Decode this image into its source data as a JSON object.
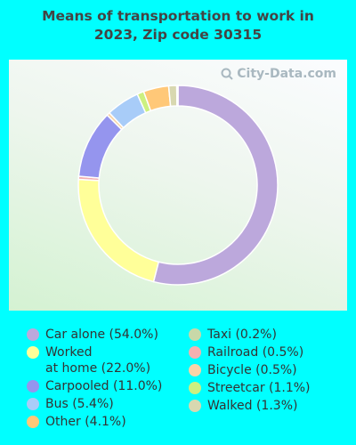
{
  "chart_data": {
    "type": "pie",
    "title_lines": [
      "Means of transportation to work in",
      "2023, Zip code 30315"
    ],
    "watermark": "City-Data.com",
    "slices": [
      {
        "label": "Car alone (54.0%)",
        "value": 54.0,
        "color": "#bca8dc"
      },
      {
        "label": "Worked\nat home (22.0%)",
        "value": 22.0,
        "color": "#ffff99"
      },
      {
        "label": "Railroad (0.5%)",
        "value": 0.5,
        "color": "#f4b0b0"
      },
      {
        "label": "Carpooled (11.0%)",
        "value": 11.0,
        "color": "#9595ee"
      },
      {
        "label": "Bicycle (0.5%)",
        "value": 0.5,
        "color": "#f8d4a8"
      },
      {
        "label": "Bus (5.4%)",
        "value": 5.4,
        "color": "#a8ccf8"
      },
      {
        "label": "Streetcar (1.1%)",
        "value": 1.1,
        "color": "#ccf080"
      },
      {
        "label": "Other (4.1%)",
        "value": 4.1,
        "color": "#ffc878"
      },
      {
        "label": "Walked (1.3%)",
        "value": 1.3,
        "color": "#d8d8b0"
      },
      {
        "label": "Taxi (0.2%)",
        "value": 0.2,
        "color": "#c8d8a8"
      }
    ],
    "legend_columns": [
      [
        "Car alone (54.0%)",
        "Worked\nat home (22.0%)",
        "Carpooled (11.0%)",
        "Bus (5.4%)",
        "Other (4.1%)"
      ],
      [
        "Taxi (0.2%)",
        "Railroad (0.5%)",
        "Bicycle (0.5%)",
        "Streetcar (1.1%)",
        "Walked (1.3%)"
      ]
    ]
  }
}
